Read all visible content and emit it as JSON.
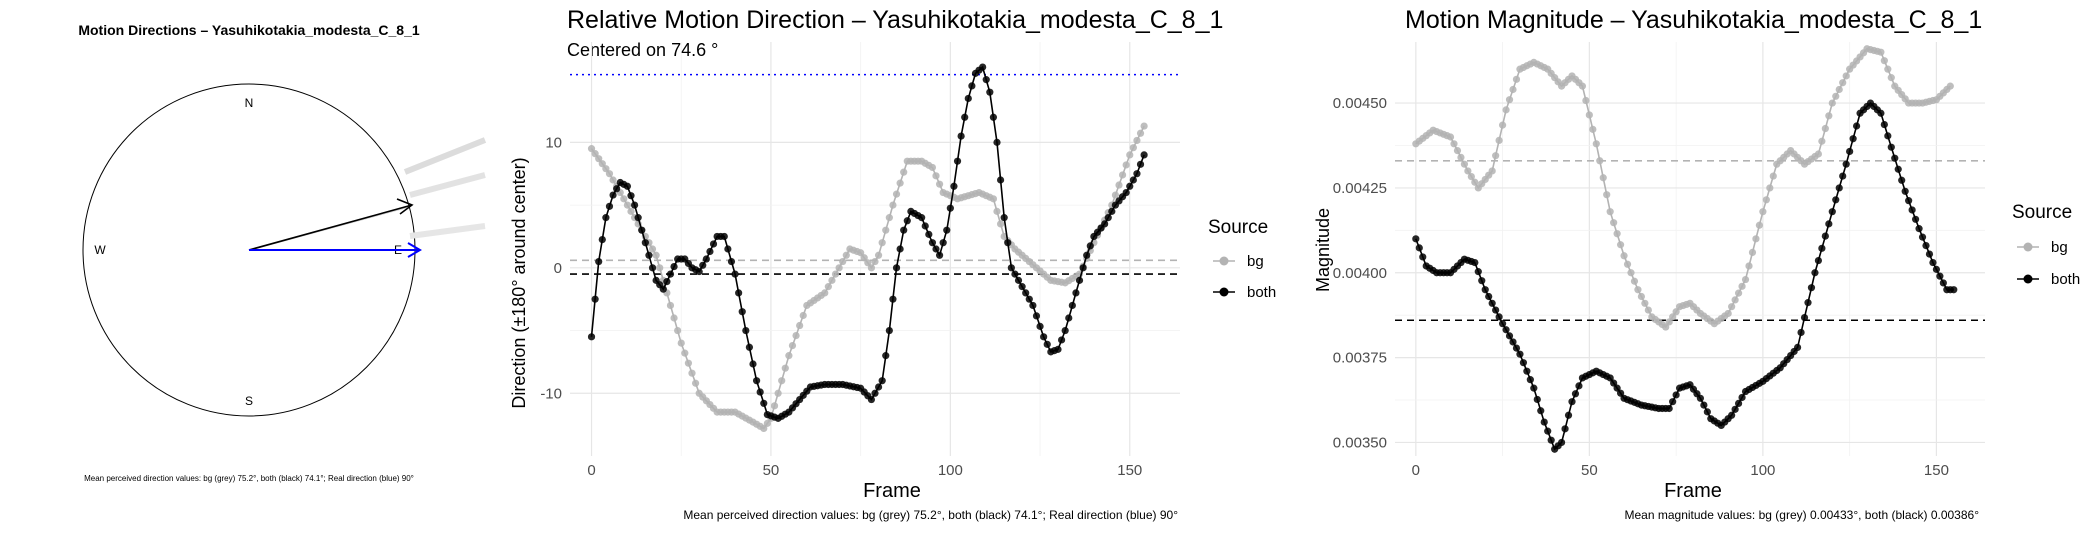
{
  "compass": {
    "title": "Motion Directions – Yasuhikotakia_modesta_C_8_1",
    "labels": {
      "n": "N",
      "s": "S",
      "e": "E",
      "w": "W"
    },
    "caption": "Mean perceived direction values: bg (grey) 75.2°, both (black) 74.1°; Real direction (blue) 90°",
    "colors": {
      "bg": "#cccccc",
      "both": "#000000",
      "real": "#0000ff"
    }
  },
  "chart_data": [
    {
      "type": "line",
      "title": "Relative Motion Direction – Yasuhikotakia_modesta_C_8_1",
      "subtitle": "Centered on  74.6 °",
      "xlabel": "Frame",
      "ylabel": "Direction (±180° around center)",
      "xlim": [
        -6,
        164
      ],
      "ylim": [
        -15,
        18
      ],
      "xticks": [
        0,
        50,
        100,
        150
      ],
      "yticks": [
        -10,
        0,
        10
      ],
      "grid": true,
      "legend_title": "Source",
      "legend_position": "right",
      "hlines": [
        {
          "y": 15.4,
          "style": "dotted",
          "color": "#0000ff"
        },
        {
          "y": 0.6,
          "style": "dashed",
          "color": "#b3b3b3"
        },
        {
          "y": -0.5,
          "style": "dashed",
          "color": "#000000"
        }
      ],
      "series": [
        {
          "name": "bg",
          "color": "#b3b3b3",
          "points": [
            [
              0,
              9.5
            ],
            [
              5,
              7.5
            ],
            [
              10,
              5
            ],
            [
              15,
              2.5
            ],
            [
              18,
              1
            ],
            [
              20,
              -1
            ],
            [
              25,
              -6
            ],
            [
              30,
              -10
            ],
            [
              35,
              -11.5
            ],
            [
              40,
              -11.5
            ],
            [
              45,
              -12.3
            ],
            [
              48,
              -12.8
            ],
            [
              50,
              -12
            ],
            [
              55,
              -7
            ],
            [
              60,
              -3
            ],
            [
              65,
              -2
            ],
            [
              70,
              0.5
            ],
            [
              72,
              1.5
            ],
            [
              75,
              1.2
            ],
            [
              78,
              0
            ],
            [
              80,
              1
            ],
            [
              84,
              5
            ],
            [
              88,
              8.5
            ],
            [
              92,
              8.5
            ],
            [
              95,
              8
            ],
            [
              98,
              6
            ],
            [
              102,
              5.5
            ],
            [
              108,
              6
            ],
            [
              112,
              5.5
            ],
            [
              115,
              2.5
            ],
            [
              118,
              1.5
            ],
            [
              122,
              0.5
            ],
            [
              128,
              -1
            ],
            [
              132,
              -1.2
            ],
            [
              136,
              -0.5
            ],
            [
              140,
              2
            ],
            [
              145,
              5
            ],
            [
              150,
              9
            ],
            [
              154,
              11.3
            ]
          ]
        },
        {
          "name": "both",
          "color": "#000000",
          "points": [
            [
              0,
              -5.5
            ],
            [
              2,
              0.5
            ],
            [
              4,
              4
            ],
            [
              6,
              5.8
            ],
            [
              8,
              6.8
            ],
            [
              10,
              6.5
            ],
            [
              12,
              5
            ],
            [
              15,
              2
            ],
            [
              18,
              -1
            ],
            [
              20,
              -1.7
            ],
            [
              22,
              -0.5
            ],
            [
              24,
              0.7
            ],
            [
              26,
              0.7
            ],
            [
              28,
              0
            ],
            [
              30,
              -0.3
            ],
            [
              32,
              0.7
            ],
            [
              35,
              2.5
            ],
            [
              37,
              2.5
            ],
            [
              40,
              -0.5
            ],
            [
              43,
              -5
            ],
            [
              46,
              -9
            ],
            [
              49,
              -11.7
            ],
            [
              52,
              -12
            ],
            [
              55,
              -11.5
            ],
            [
              58,
              -10.5
            ],
            [
              61,
              -9.5
            ],
            [
              65,
              -9.3
            ],
            [
              70,
              -9.3
            ],
            [
              75,
              -9.6
            ],
            [
              78,
              -10.5
            ],
            [
              81,
              -9
            ],
            [
              83,
              -5
            ],
            [
              85,
              0
            ],
            [
              87,
              3
            ],
            [
              89,
              4.5
            ],
            [
              92,
              4
            ],
            [
              95,
              2
            ],
            [
              97,
              1
            ],
            [
              99,
              3
            ],
            [
              101,
              6.5
            ],
            [
              103,
              10.5
            ],
            [
              105,
              13.5
            ],
            [
              107,
              15.5
            ],
            [
              109,
              16
            ],
            [
              111,
              14
            ],
            [
              113,
              10
            ],
            [
              115,
              4
            ],
            [
              117,
              0
            ],
            [
              120,
              -1.5
            ],
            [
              123,
              -3
            ],
            [
              126,
              -5.5
            ],
            [
              128,
              -6.7
            ],
            [
              130,
              -6.5
            ],
            [
              132,
              -5
            ],
            [
              134,
              -3
            ],
            [
              136,
              -1
            ],
            [
              138,
              1
            ],
            [
              140,
              2.5
            ],
            [
              143,
              3.5
            ],
            [
              146,
              5
            ],
            [
              149,
              6
            ],
            [
              152,
              7.5
            ],
            [
              154,
              9
            ]
          ]
        }
      ],
      "caption": "Mean perceived direction values: bg (grey) 75.2°, both (black) 74.1°; Real direction (blue) 90°"
    },
    {
      "type": "line",
      "title": "Motion Magnitude – Yasuhikotakia_modesta_C_8_1",
      "subtitle": "",
      "xlabel": "Frame",
      "ylabel": "Magnitude",
      "xlim": [
        -6,
        164
      ],
      "ylim": [
        0.00346,
        0.00468
      ],
      "xticks": [
        0,
        50,
        100,
        150
      ],
      "yticks": [
        0.0035,
        0.00375,
        0.004,
        0.00425,
        0.0045
      ],
      "ytick_labels": [
        "0.00350",
        "0.00375",
        "0.00400",
        "0.00425",
        "0.00450"
      ],
      "grid": true,
      "legend_title": "Source",
      "legend_position": "right",
      "hlines": [
        {
          "y": 0.00433,
          "style": "dashed",
          "color": "#b3b3b3"
        },
        {
          "y": 0.00386,
          "style": "dashed",
          "color": "#000000"
        }
      ],
      "series": [
        {
          "name": "bg",
          "color": "#b3b3b3",
          "points": [
            [
              0,
              0.00438
            ],
            [
              5,
              0.00442
            ],
            [
              10,
              0.0044
            ],
            [
              15,
              0.0043
            ],
            [
              18,
              0.00425
            ],
            [
              22,
              0.0043
            ],
            [
              26,
              0.00448
            ],
            [
              30,
              0.0046
            ],
            [
              34,
              0.00462
            ],
            [
              38,
              0.0046
            ],
            [
              42,
              0.00455
            ],
            [
              45,
              0.00458
            ],
            [
              48,
              0.00455
            ],
            [
              52,
              0.00438
            ],
            [
              56,
              0.00418
            ],
            [
              60,
              0.00405
            ],
            [
              64,
              0.00395
            ],
            [
              68,
              0.00387
            ],
            [
              72,
              0.00384
            ],
            [
              76,
              0.0039
            ],
            [
              79,
              0.00391
            ],
            [
              82,
              0.00388
            ],
            [
              86,
              0.00385
            ],
            [
              90,
              0.00388
            ],
            [
              95,
              0.00398
            ],
            [
              100,
              0.00418
            ],
            [
              104,
              0.00432
            ],
            [
              108,
              0.00436
            ],
            [
              112,
              0.00432
            ],
            [
              116,
              0.00435
            ],
            [
              120,
              0.0045
            ],
            [
              125,
              0.0046
            ],
            [
              130,
              0.00466
            ],
            [
              134,
              0.00465
            ],
            [
              138,
              0.00455
            ],
            [
              142,
              0.0045
            ],
            [
              146,
              0.0045
            ],
            [
              150,
              0.00451
            ],
            [
              154,
              0.00455
            ]
          ]
        },
        {
          "name": "both",
          "color": "#000000",
          "points": [
            [
              0,
              0.0041
            ],
            [
              3,
              0.00402
            ],
            [
              6,
              0.004
            ],
            [
              10,
              0.004
            ],
            [
              14,
              0.00404
            ],
            [
              17,
              0.00403
            ],
            [
              20,
              0.00395
            ],
            [
              25,
              0.00385
            ],
            [
              30,
              0.00376
            ],
            [
              34,
              0.00366
            ],
            [
              37,
              0.00356
            ],
            [
              40,
              0.00348
            ],
            [
              42,
              0.0035
            ],
            [
              45,
              0.00362
            ],
            [
              48,
              0.00369
            ],
            [
              52,
              0.00371
            ],
            [
              56,
              0.00369
            ],
            [
              60,
              0.00363
            ],
            [
              65,
              0.00361
            ],
            [
              70,
              0.0036
            ],
            [
              73,
              0.0036
            ],
            [
              76,
              0.00366
            ],
            [
              79,
              0.00367
            ],
            [
              82,
              0.00363
            ],
            [
              85,
              0.00357
            ],
            [
              88,
              0.00355
            ],
            [
              91,
              0.00358
            ],
            [
              95,
              0.00365
            ],
            [
              100,
              0.00368
            ],
            [
              105,
              0.00372
            ],
            [
              110,
              0.00378
            ],
            [
              115,
              0.004
            ],
            [
              120,
              0.00418
            ],
            [
              124,
              0.00432
            ],
            [
              128,
              0.00447
            ],
            [
              131,
              0.0045
            ],
            [
              134,
              0.00447
            ],
            [
              137,
              0.00437
            ],
            [
              141,
              0.00424
            ],
            [
              145,
              0.00413
            ],
            [
              149,
              0.00403
            ],
            [
              153,
              0.00395
            ],
            [
              155,
              0.00395
            ]
          ]
        }
      ],
      "caption": "Mean magnitude values: bg (grey) 0.00433°, both (black) 0.00386°"
    }
  ]
}
